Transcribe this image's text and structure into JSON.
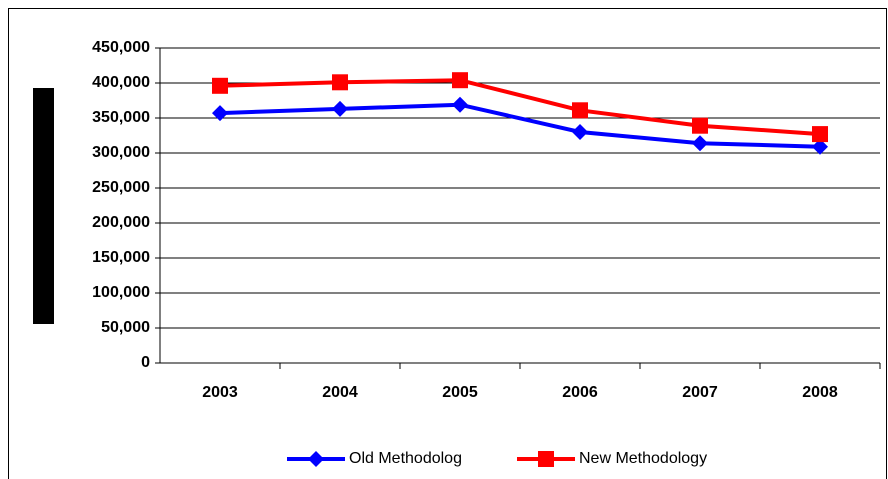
{
  "chart_data": {
    "type": "line",
    "categories": [
      "2003",
      "2004",
      "2005",
      "2006",
      "2007",
      "2008"
    ],
    "series": [
      {
        "name": "Old Methodolog",
        "color": "#0000ff",
        "marker": "diamond",
        "values": [
          357000,
          363000,
          369000,
          330000,
          314000,
          309000
        ]
      },
      {
        "name": "New Methodology",
        "color": "#ff0000",
        "marker": "square",
        "values": [
          396000,
          401000,
          404000,
          361000,
          339000,
          327000
        ]
      }
    ],
    "ylim": [
      0,
      450000
    ],
    "yticks": [
      0,
      {
        "value": 50000,
        "label": "50,000"
      },
      {
        "value": 100000,
        "label": "100,000"
      },
      {
        "value": 150000,
        "label": "150,000"
      },
      {
        "value": 200000,
        "label": "200,000"
      },
      {
        "value": 250000,
        "label": "250,000"
      },
      {
        "value": 300000,
        "label": "300,000"
      },
      {
        "value": 350000,
        "label": "350,000"
      },
      {
        "value": 400000,
        "label": "400,000"
      },
      {
        "value": 450000,
        "label": "450,000"
      }
    ],
    "grid": true,
    "legend": "bottom"
  }
}
